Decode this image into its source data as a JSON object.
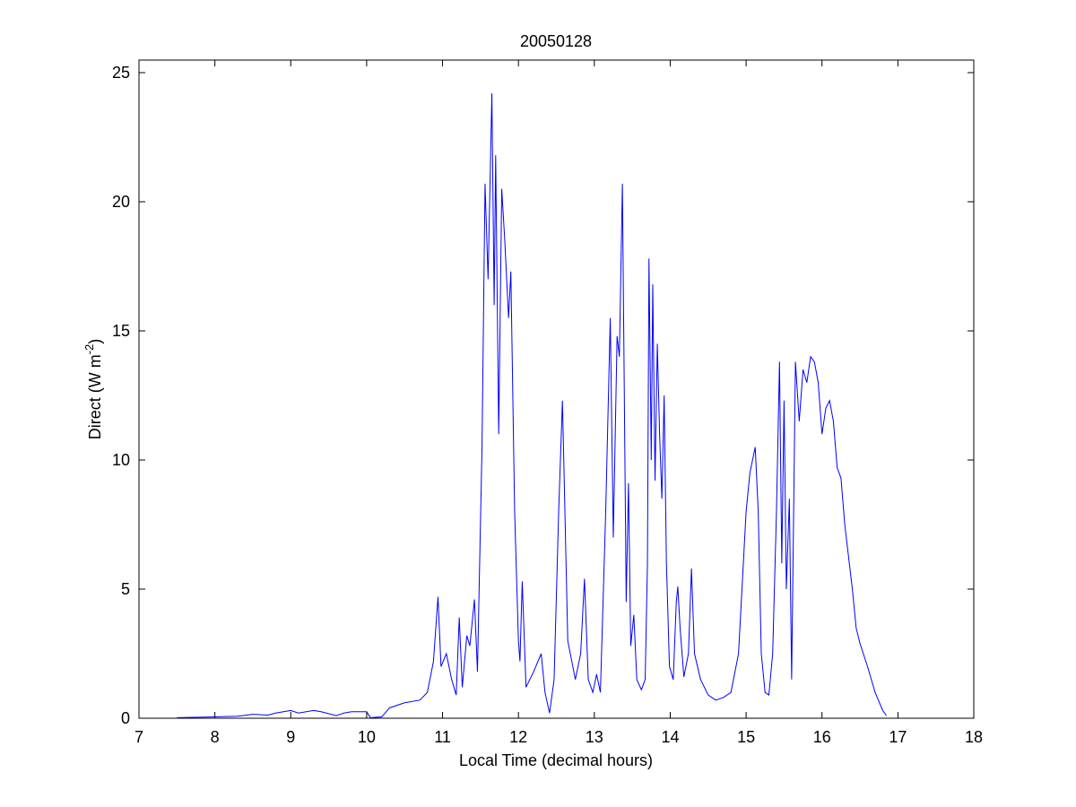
{
  "chart_data": {
    "type": "line",
    "title": "20050128",
    "xlabel": "Local Time (decimal hours)",
    "ylabel": [
      "Direct (W m",
      "-2",
      ")"
    ],
    "x": [
      7.5,
      7.8,
      8.0,
      8.3,
      8.5,
      8.7,
      8.8,
      9.0,
      9.1,
      9.3,
      9.4,
      9.6,
      9.7,
      9.8,
      10.0,
      10.05,
      10.2,
      10.3,
      10.5,
      10.7,
      10.8,
      10.88,
      10.94,
      10.98,
      11.05,
      11.12,
      11.18,
      11.22,
      11.26,
      11.32,
      11.36,
      11.42,
      11.46,
      11.52,
      11.56,
      11.6,
      11.65,
      11.68,
      11.7,
      11.74,
      11.78,
      11.82,
      11.87,
      11.9,
      11.95,
      12.0,
      12.02,
      12.05,
      12.1,
      12.2,
      12.3,
      12.35,
      12.41,
      12.47,
      12.53,
      12.58,
      12.65,
      12.75,
      12.82,
      12.87,
      12.92,
      12.98,
      13.03,
      13.08,
      13.15,
      13.21,
      13.25,
      13.3,
      13.33,
      13.37,
      13.42,
      13.45,
      13.48,
      13.52,
      13.56,
      13.62,
      13.67,
      13.7,
      13.72,
      13.75,
      13.77,
      13.8,
      13.83,
      13.86,
      13.89,
      13.92,
      13.95,
      13.99,
      14.04,
      14.08,
      14.1,
      14.13,
      14.18,
      14.24,
      14.28,
      14.32,
      14.4,
      14.5,
      14.6,
      14.7,
      14.8,
      14.9,
      15.0,
      15.05,
      15.12,
      15.16,
      15.2,
      15.25,
      15.3,
      15.35,
      15.4,
      15.44,
      15.47,
      15.5,
      15.53,
      15.57,
      15.6,
      15.65,
      15.7,
      15.75,
      15.8,
      15.85,
      15.9,
      15.95,
      16.0,
      16.05,
      16.1,
      16.15,
      16.2,
      16.25,
      16.3,
      16.4,
      16.45,
      16.5,
      16.6,
      16.7,
      16.8,
      16.85
    ],
    "values": [
      0.02,
      0.04,
      0.05,
      0.08,
      0.15,
      0.12,
      0.2,
      0.3,
      0.2,
      0.3,
      0.25,
      0.1,
      0.2,
      0.25,
      0.25,
      0.02,
      0.05,
      0.4,
      0.6,
      0.7,
      1.0,
      2.2,
      4.7,
      2.0,
      2.5,
      1.5,
      0.9,
      3.9,
      1.2,
      3.2,
      2.8,
      4.6,
      1.8,
      10.5,
      20.7,
      17.0,
      24.2,
      16.0,
      21.8,
      11.0,
      20.5,
      18.5,
      15.5,
      17.3,
      8.0,
      3.0,
      2.2,
      5.3,
      1.2,
      1.8,
      2.5,
      1.0,
      0.2,
      1.5,
      8.0,
      12.3,
      3.0,
      1.5,
      2.5,
      5.4,
      1.5,
      1.0,
      1.7,
      1.0,
      8.0,
      15.5,
      7.0,
      14.8,
      14.0,
      20.7,
      4.5,
      9.1,
      2.8,
      4.0,
      1.5,
      1.1,
      1.5,
      6.0,
      17.8,
      10.0,
      16.8,
      9.2,
      14.5,
      11.0,
      8.5,
      12.5,
      6.0,
      2.0,
      1.5,
      4.5,
      5.1,
      3.5,
      1.6,
      2.5,
      5.8,
      2.5,
      1.5,
      0.9,
      0.7,
      0.8,
      1.0,
      2.5,
      8.0,
      9.5,
      10.5,
      8.0,
      2.5,
      1.0,
      0.9,
      2.5,
      8.0,
      13.8,
      6.0,
      12.3,
      5.0,
      8.5,
      1.5,
      13.8,
      11.5,
      13.5,
      13.0,
      14.0,
      13.8,
      13.0,
      11.0,
      12.0,
      12.3,
      11.5,
      9.7,
      9.3,
      7.5,
      5.0,
      3.5,
      2.9,
      2.0,
      1.0,
      0.3,
      0.1
    ],
    "color": "#0000ff",
    "xlim": [
      7,
      18
    ],
    "xticks": [
      7,
      8,
      9,
      10,
      11,
      12,
      13,
      14,
      15,
      16,
      17,
      18
    ],
    "ylim": [
      0,
      25
    ],
    "yticks": [
      0,
      5,
      10,
      15,
      20,
      25
    ],
    "grid": false
  }
}
